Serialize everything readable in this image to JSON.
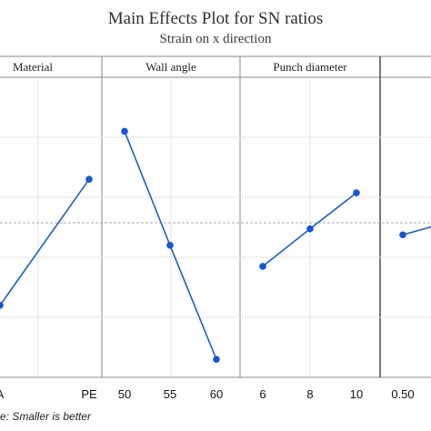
{
  "title": "Main Effects Plot for SN ratios",
  "subtitle": "Strain on x direction",
  "footnote": "e: Smaller is better",
  "colors": {
    "line": "#1f5fbf",
    "marker": "#1456d1",
    "mean_line": "#a8a8a8",
    "grid": "#e6e6e6",
    "frame": "#8a8a8a",
    "header_bg": "#ffffff"
  },
  "chart_data": {
    "type": "line",
    "title": "Main Effects Plot for SN ratios",
    "subtitle": "Strain on x direction",
    "ylim": [
      0,
      10
    ],
    "overall_mean": 5.15,
    "grid": true,
    "panels": [
      {
        "name": "Material",
        "categories": [
          "A",
          "PE"
        ],
        "values": [
          2.4,
          6.6
        ]
      },
      {
        "name": "Wall angle",
        "categories": [
          "50",
          "55",
          "60"
        ],
        "values": [
          8.2,
          4.4,
          0.6
        ]
      },
      {
        "name": "Punch diameter",
        "categories": [
          "6",
          "8",
          "10"
        ],
        "values": [
          3.7,
          4.95,
          6.15
        ]
      },
      {
        "name": "",
        "categories": [
          "0.50",
          ""
        ],
        "values": [
          4.75,
          5.15
        ]
      }
    ]
  }
}
